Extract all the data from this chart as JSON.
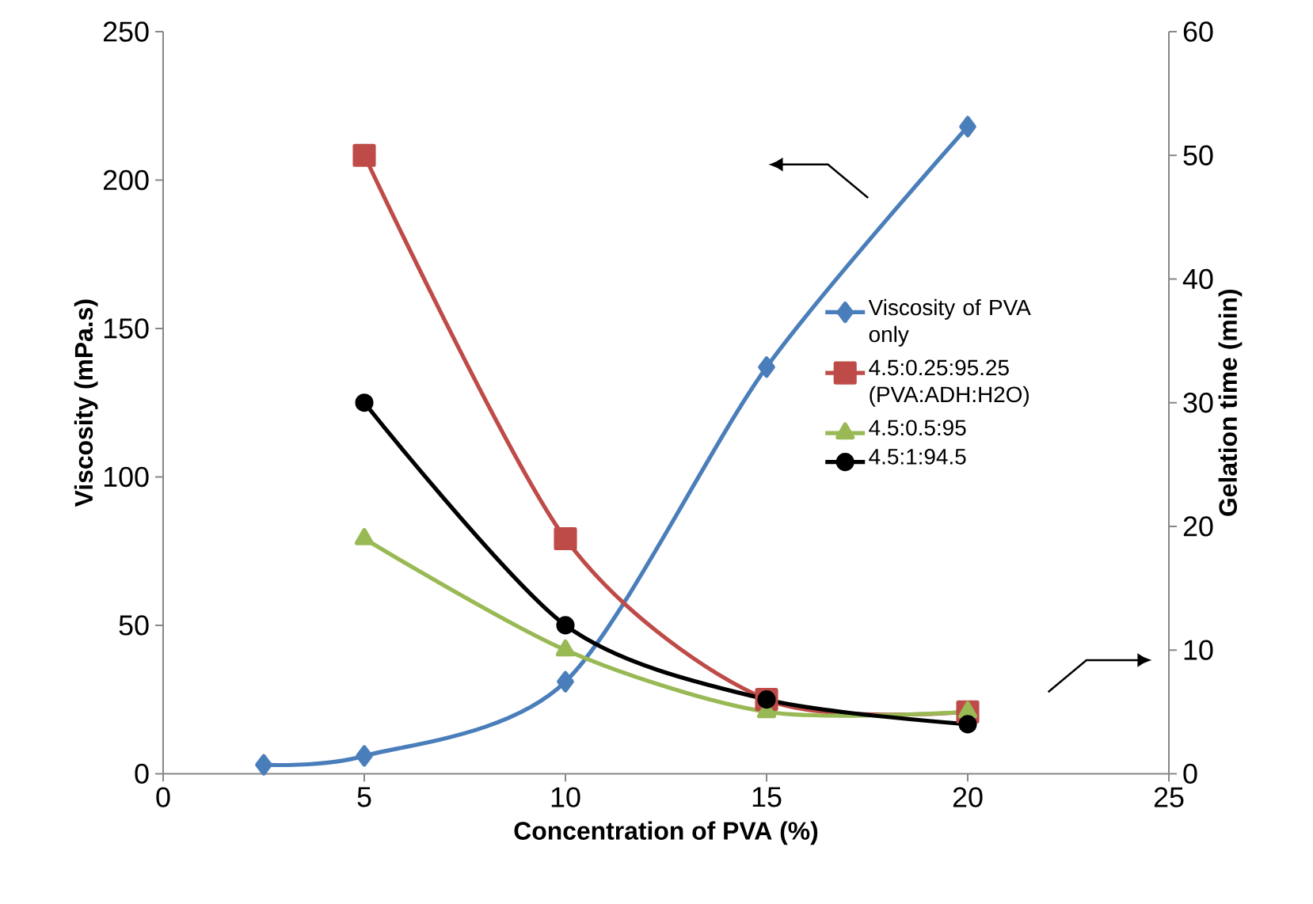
{
  "chart_data": {
    "type": "line",
    "xlabel": "Concentration of PVA (%)",
    "ylabel": "Viscosity (mPa.s)",
    "y2label": "Gelation time (min)",
    "xlim": [
      0,
      25
    ],
    "xticks": [
      0,
      5,
      10,
      15,
      20,
      25
    ],
    "ylim": [
      0,
      250
    ],
    "yticks": [
      0,
      50,
      100,
      150,
      200,
      250
    ],
    "y2lim": [
      0,
      60
    ],
    "y2ticks": [
      0,
      10,
      20,
      30,
      40,
      50,
      60
    ],
    "legend": "right",
    "grid": false,
    "series": [
      {
        "name": "Viscosity of PVA only",
        "color": "#4a7ebb",
        "marker": "diamond",
        "x": [
          2.5,
          5,
          10,
          15,
          20
        ],
        "values": [
          3,
          6,
          31,
          137,
          218
        ]
      },
      {
        "name": "4.5:0.25:95.25 (PVA:ADH:H2O)",
        "color": "#be4b48",
        "marker": "square",
        "axis": "y2",
        "x": [
          5,
          10,
          15,
          20
        ],
        "values": [
          50,
          19,
          6,
          5
        ]
      },
      {
        "name": "4.5:0.5:95",
        "color": "#98b954",
        "marker": "triangle",
        "axis": "y2",
        "x": [
          5,
          10,
          15,
          20
        ],
        "values": [
          19,
          10,
          5,
          5
        ]
      },
      {
        "name": "4.5:1:94.5",
        "color": "#000000",
        "marker": "circle",
        "axis": "y2",
        "x": [
          5,
          10,
          15,
          20
        ],
        "values": [
          30,
          12,
          6,
          4
        ]
      }
    ]
  }
}
